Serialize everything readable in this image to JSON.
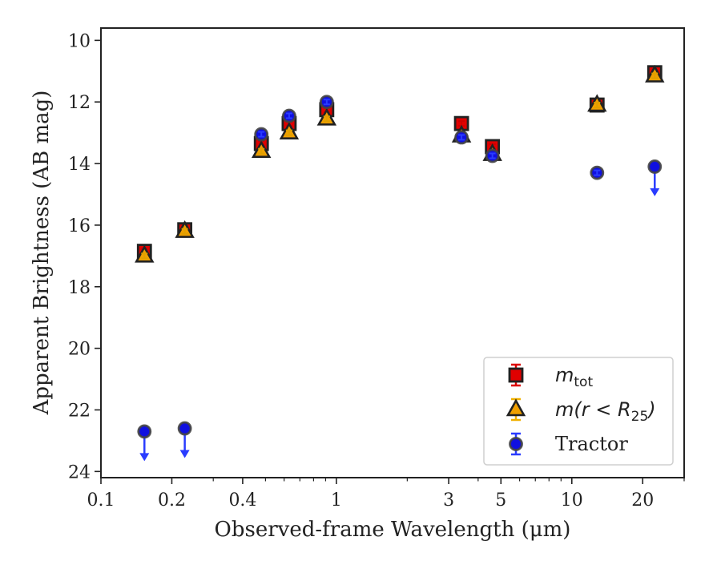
{
  "chart_data": {
    "type": "scatter",
    "xscale": "log",
    "yaxis_inverted": true,
    "xlim": [
      0.1,
      30
    ],
    "ylim": [
      24.2,
      9.6
    ],
    "xlabel": "Observed-frame Wavelength (μm)",
    "ylabel": "Apparent Brightness (AB mag)",
    "xticks": [
      {
        "value": 0.1,
        "label": "0.1"
      },
      {
        "value": 0.2,
        "label": "0.2"
      },
      {
        "value": 0.4,
        "label": "0.4"
      },
      {
        "value": 1,
        "label": "1"
      },
      {
        "value": 3,
        "label": "3"
      },
      {
        "value": 5,
        "label": "5"
      },
      {
        "value": 10,
        "label": "10"
      },
      {
        "value": 20,
        "label": "20"
      }
    ],
    "yticks": [
      {
        "value": 10,
        "label": "10"
      },
      {
        "value": 12,
        "label": "12"
      },
      {
        "value": 14,
        "label": "14"
      },
      {
        "value": 16,
        "label": "16"
      },
      {
        "value": 18,
        "label": "18"
      },
      {
        "value": 20,
        "label": "20"
      },
      {
        "value": 22,
        "label": "22"
      },
      {
        "value": 24,
        "label": "24"
      }
    ],
    "legend_position": "bottom-right",
    "series": [
      {
        "name": "m_tot",
        "marker": "square",
        "color": "#e00000",
        "edge": "#222222",
        "points": [
          {
            "x": 0.153,
            "y": 16.85
          },
          {
            "x": 0.227,
            "y": 16.15
          },
          {
            "x": 0.48,
            "y": 13.35
          },
          {
            "x": 0.63,
            "y": 12.7
          },
          {
            "x": 0.91,
            "y": 12.25
          },
          {
            "x": 3.4,
            "y": 12.7
          },
          {
            "x": 4.6,
            "y": 13.45
          },
          {
            "x": 12.8,
            "y": 12.1
          },
          {
            "x": 22.5,
            "y": 11.05
          }
        ]
      },
      {
        "name": "m(r<R25)",
        "marker": "triangle",
        "color": "#f0a000",
        "edge": "#222222",
        "points": [
          {
            "x": 0.153,
            "y": 17.0
          },
          {
            "x": 0.227,
            "y": 16.2
          },
          {
            "x": 0.48,
            "y": 13.6
          },
          {
            "x": 0.63,
            "y": 13.0
          },
          {
            "x": 0.91,
            "y": 12.55
          },
          {
            "x": 3.4,
            "y": 13.1
          },
          {
            "x": 4.6,
            "y": 13.7
          },
          {
            "x": 12.8,
            "y": 12.1
          },
          {
            "x": 22.5,
            "y": 11.15
          }
        ]
      },
      {
        "name": "Tractor",
        "marker": "circle",
        "color": "#1010e0",
        "edge": "#444444",
        "arrow_color": "#2a3cff",
        "points": [
          {
            "x": 0.153,
            "y": 22.7,
            "upper_limit": true
          },
          {
            "x": 0.227,
            "y": 22.6,
            "upper_limit": true
          },
          {
            "x": 0.48,
            "y": 13.05
          },
          {
            "x": 0.63,
            "y": 12.45
          },
          {
            "x": 0.91,
            "y": 12.0
          },
          {
            "x": 3.4,
            "y": 13.15
          },
          {
            "x": 4.6,
            "y": 13.75
          },
          {
            "x": 12.8,
            "y": 14.3
          },
          {
            "x": 22.5,
            "y": 14.1,
            "upper_limit": true
          }
        ]
      }
    ],
    "legend": [
      {
        "series": 0,
        "text": "m",
        "sub": "tot",
        "kind": "mtot"
      },
      {
        "series": 1,
        "text": "m(r < R",
        "sub": "25",
        "after": ")",
        "kind": "mr"
      },
      {
        "series": 2,
        "text": "Tractor",
        "kind": "plain"
      }
    ]
  }
}
